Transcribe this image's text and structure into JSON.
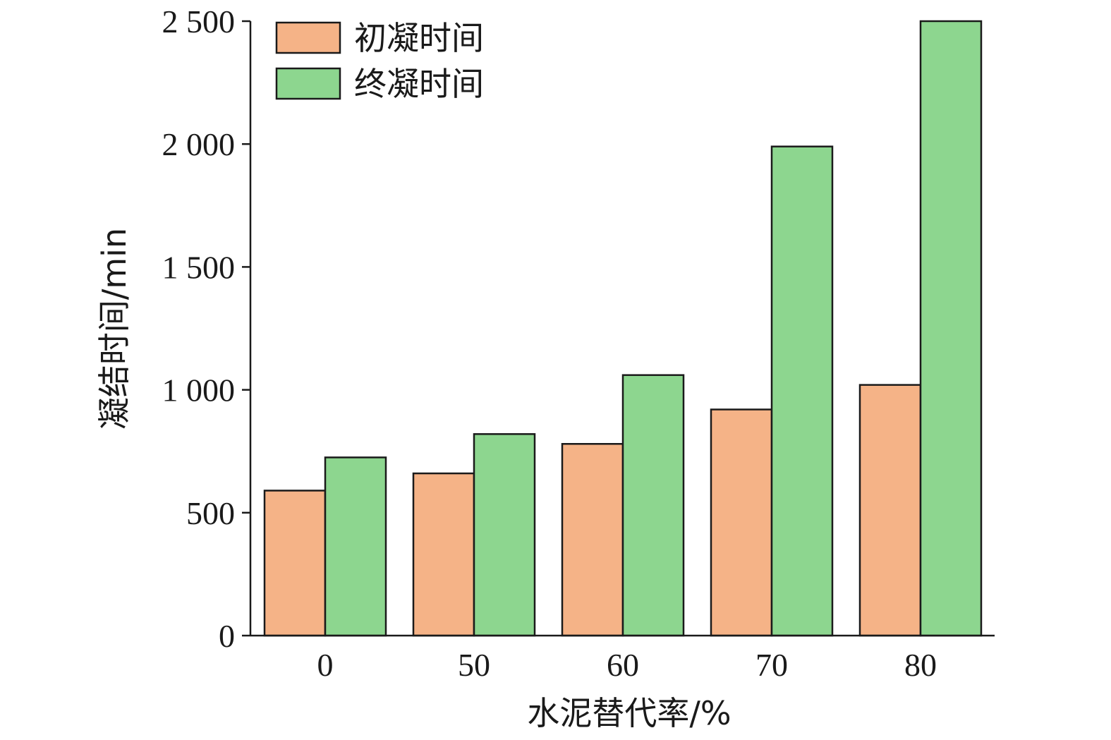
{
  "chart_data": {
    "type": "bar",
    "categories": [
      "0",
      "50",
      "60",
      "70",
      "80"
    ],
    "series": [
      {
        "name": "初凝时间",
        "values": [
          590,
          660,
          780,
          920,
          1020
        ],
        "color": "#F5B387"
      },
      {
        "name": "终凝时间",
        "values": [
          725,
          820,
          1060,
          1990,
          2500
        ],
        "color": "#8DD68F"
      }
    ],
    "xlabel": "水泥替代率/%",
    "ylabel": "凝结时间/min",
    "ylim": [
      0,
      2500
    ],
    "yticks": [
      0,
      500,
      1000,
      1500,
      2000,
      2500
    ],
    "ytick_labels": [
      "0",
      "500",
      "1 000",
      "1 500",
      "2 000",
      "2 500"
    ],
    "legend": "top-left",
    "grid": false
  }
}
